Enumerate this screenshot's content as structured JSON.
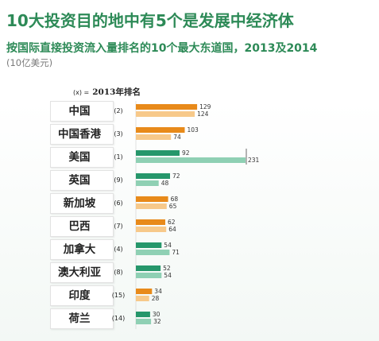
{
  "title": "10大投资目的地中有5个是发展中经济体",
  "subtitle": "按国际直接投资流入量排名的10个最大东道国，2013及2014",
  "unit": "(10亿美元)",
  "rank_header": {
    "x": "(x) =",
    "label": "2013年排名"
  },
  "colors": {
    "developing_2014": "#e88a1a",
    "developing_2013": "#f7c98a",
    "developed_2014": "#26976b",
    "developed_2013": "#8fd0b4",
    "title_green": "#2d8a57"
  },
  "chart_data": {
    "type": "bar",
    "orientation": "horizontal",
    "title": "10大投资目的地中有5个是发展中经济体",
    "subtitle": "按国际直接投资流入量排名的10个最大东道国，2013及2014",
    "unit": "(10亿美元)",
    "categories": [
      "中国",
      "中国香港",
      "美国",
      "英国",
      "新加坡",
      "巴西",
      "加拿大",
      "澳大利亚",
      "印度",
      "荷兰"
    ],
    "ranks_2013": [
      "(2)",
      "(3)",
      "(1)",
      "(9)",
      "(6)",
      "(7)",
      "(4)",
      "(8)",
      "(15)",
      "(14)"
    ],
    "groups": [
      "developing",
      "developing",
      "developed",
      "developed",
      "developing",
      "developing",
      "developed",
      "developed",
      "developing",
      "developed"
    ],
    "series": [
      {
        "values": [
          129,
          103,
          92,
          72,
          68,
          62,
          54,
          52,
          34,
          30
        ]
      },
      {
        "values": [
          124,
          74,
          231,
          48,
          65,
          64,
          71,
          54,
          28,
          32
        ]
      }
    ],
    "xlim": [
      0,
      231
    ],
    "grid": false
  }
}
